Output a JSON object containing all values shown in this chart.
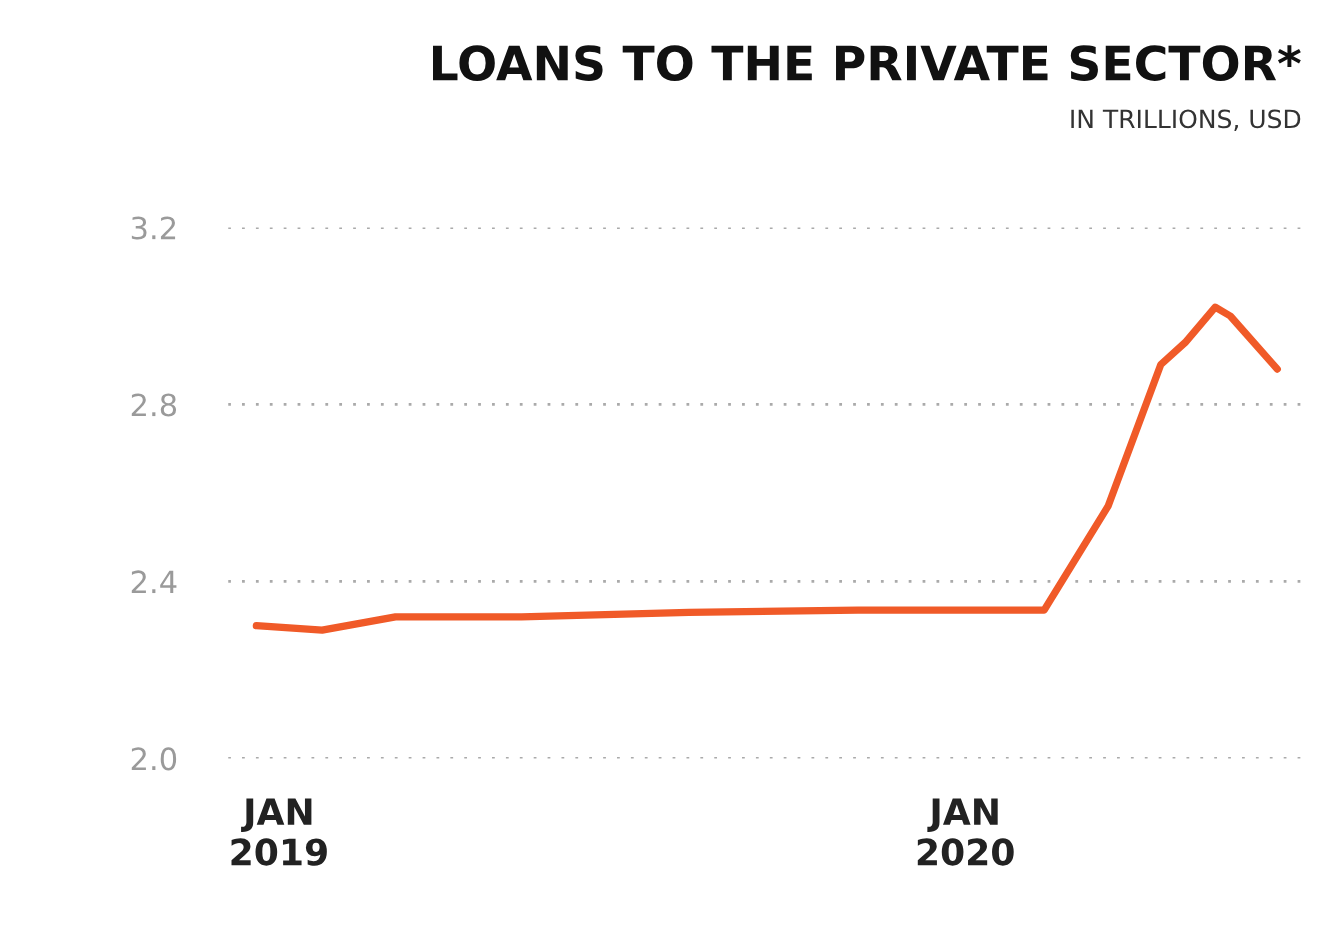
{
  "chart_data": {
    "type": "line",
    "title": "LOANS TO THE PRIVATE SECTOR*",
    "subtitle": "IN TRILLIONS, USD",
    "x": [
      "2018-12-20",
      "2019-01-24",
      "2019-03-04",
      "2019-05-10",
      "2019-08-07",
      "2019-11-05",
      "2020-02-12",
      "2020-03-17",
      "2020-04-14",
      "2020-04-27",
      "2020-05-13",
      "2020-05-21",
      "2020-06-15"
    ],
    "series": [
      {
        "color": "#f05a28",
        "values": [
          2.3,
          2.29,
          2.32,
          2.32,
          2.33,
          2.335,
          2.335,
          2.57,
          2.89,
          2.94,
          3.02,
          3.0,
          2.88
        ]
      }
    ],
    "xlim": [
      "2018-12-05",
      "2020-06-28"
    ],
    "xticks": [
      {
        "value": "2019-01-01",
        "label": "JAN\n2019"
      },
      {
        "value": "2020-01-01",
        "label": "JAN\n2020"
      }
    ],
    "ylim": [
      2.0,
      3.2
    ],
    "yticks": [
      {
        "value": 2.0,
        "label": "2.0"
      },
      {
        "value": 2.4,
        "label": "2.4"
      },
      {
        "value": 2.8,
        "label": "2.8"
      },
      {
        "value": 3.2,
        "label": "3.2"
      }
    ],
    "grid": "y",
    "line_style": "solid",
    "marker": "none",
    "legend": false
  }
}
